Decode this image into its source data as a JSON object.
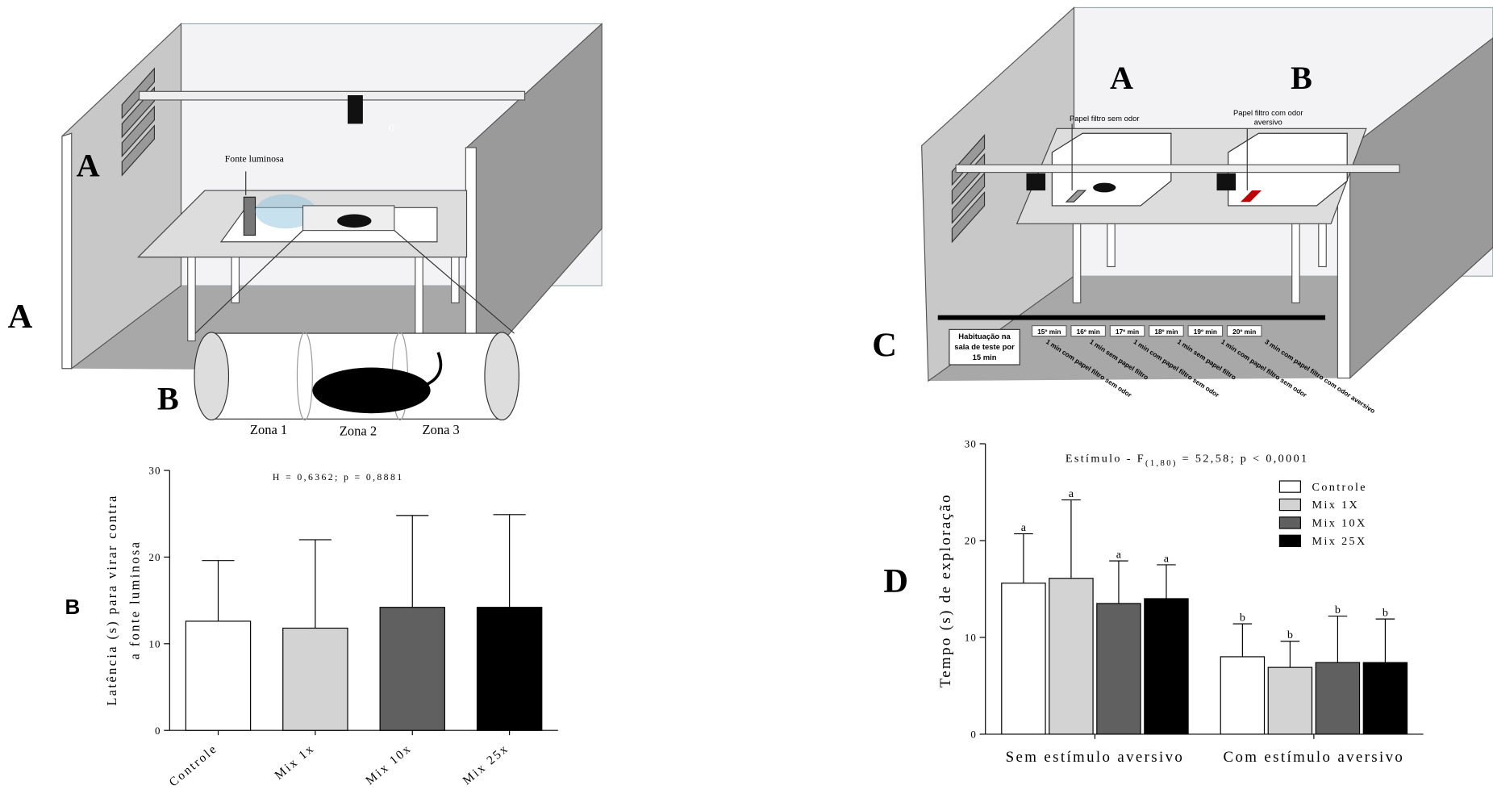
{
  "figure": {
    "panel_labels": [
      "A",
      "B",
      "C",
      "D"
    ]
  },
  "diagram_left": {
    "wall_label": "A",
    "tube_label": "B",
    "light": "Fonte luminosa",
    "counter": "0",
    "zones": [
      "Zona 1",
      "Zona 2",
      "Zona 3"
    ]
  },
  "diagram_right": {
    "box_labels": [
      "A",
      "B"
    ],
    "paper_no_odor": "Papel filtro sem odor",
    "paper_odor": [
      "Papel filtro com odor",
      "aversivo"
    ],
    "habituation": [
      "Habituação na",
      "sala de teste por",
      "15 min"
    ],
    "minutes": [
      "15º min",
      "16º min",
      "17º min",
      "18º min",
      "19º min",
      "20º min"
    ],
    "steps": [
      "1 min com papel filtro sem odor",
      "1 min sem papel filtro",
      "1 min com papel filtro sem odor",
      "1 min sem papel filtro",
      "1 min com papel filtro sem odor",
      "3 min com papel filtro com odor aversivo"
    ]
  },
  "chart_data": [
    {
      "type": "bar",
      "annotation": "H = 0,6362; p = 0,8881",
      "y_label": [
        "Latência (s) para virar contra",
        "a fonte luminosa"
      ],
      "categories": [
        "Controle",
        "Mix 1x",
        "Mix 10x",
        "Mix 25x"
      ],
      "values": [
        12.6,
        11.8,
        14.2,
        14.2
      ],
      "errors": [
        7.0,
        10.2,
        10.6,
        10.7
      ],
      "colors": [
        "#ffffff",
        "#d3d3d3",
        "#606060",
        "#000000"
      ],
      "ylim": [
        0,
        30
      ],
      "yticks": [
        0,
        10,
        20,
        30
      ]
    },
    {
      "type": "grouped_bar",
      "annotation": {
        "text": "Estímulo - F",
        "subscript": "(1,80)",
        "rest": " = 52,58; p < 0,0001"
      },
      "y_label": "Tempo (s) de exploração",
      "categories": [
        "Sem estímulo aversivo",
        "Com estímulo aversivo"
      ],
      "series": [
        {
          "name": "Controle",
          "color": "#ffffff",
          "values": [
            15.6,
            8.0
          ],
          "errors": [
            5.1,
            3.4
          ],
          "sig_labels": [
            "a",
            "b"
          ]
        },
        {
          "name": "Mix 1X",
          "color": "#d3d3d3",
          "values": [
            16.1,
            6.9
          ],
          "errors": [
            8.1,
            2.7
          ],
          "sig_labels": [
            "a",
            "b"
          ]
        },
        {
          "name": "Mix 10X",
          "color": "#606060",
          "values": [
            13.5,
            7.4
          ],
          "errors": [
            4.4,
            4.8
          ],
          "sig_labels": [
            "a",
            "b"
          ]
        },
        {
          "name": "Mix 25X",
          "color": "#000000",
          "values": [
            14.0,
            7.4
          ],
          "errors": [
            3.5,
            4.5
          ],
          "sig_labels": [
            "a",
            "b"
          ]
        }
      ],
      "ylim": [
        0,
        30
      ],
      "yticks": [
        0,
        10,
        20,
        30
      ],
      "legend": "top-right"
    }
  ]
}
